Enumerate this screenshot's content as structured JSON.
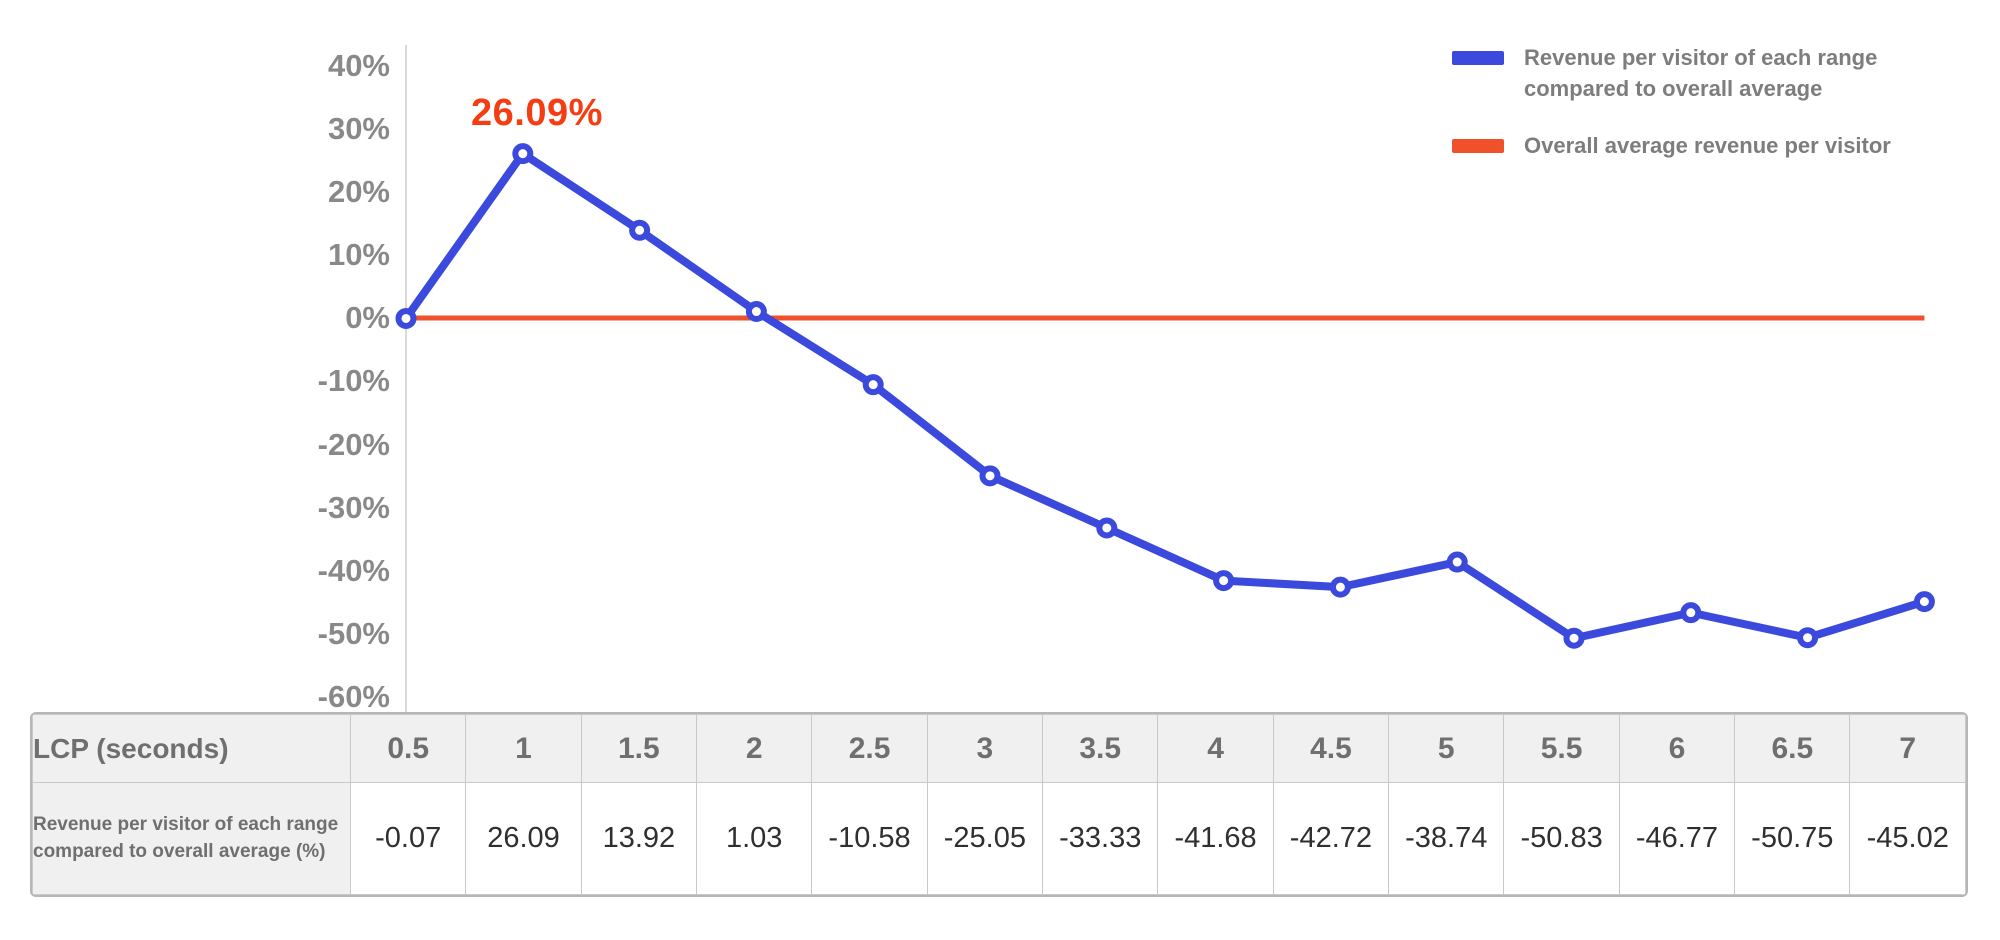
{
  "chart": {
    "y_ticks": [
      "40%",
      "30%",
      "20%",
      "10%",
      "0%",
      "-10%",
      "-20%",
      "-30%",
      "-40%",
      "-50%",
      "-60%"
    ]
  },
  "chart_data": {
    "type": "line",
    "x": [
      0.5,
      1,
      1.5,
      2,
      2.5,
      3,
      3.5,
      4,
      4.5,
      5,
      5.5,
      6,
      6.5,
      7
    ],
    "xlabel": "LCP (seconds)",
    "ylabel": "",
    "ylim": [
      -60,
      40
    ],
    "y_tick_step": 10,
    "grid": false,
    "legend_position": "top-right",
    "series": [
      {
        "name": "Revenue per visitor of each range compared to overall average",
        "color": "#3b49dc",
        "values": [
          -0.07,
          26.09,
          13.92,
          1.03,
          -10.58,
          -25.05,
          -33.33,
          -41.68,
          -42.72,
          -38.74,
          -50.83,
          -46.77,
          -50.75,
          -45.02
        ]
      },
      {
        "name": "Overall average revenue per visitor",
        "color": "#f0502a",
        "constant": 0
      }
    ],
    "annotation": {
      "text": "26.09%",
      "x": 1,
      "y": 26.09,
      "color": "#f53d14"
    }
  },
  "table": {
    "header_label": "LCP (seconds)",
    "row_label": "Revenue per visitor of each range compared to overall average (%)",
    "columns": [
      "0.5",
      "1",
      "1.5",
      "2",
      "2.5",
      "3",
      "3.5",
      "4",
      "4.5",
      "5",
      "5.5",
      "6",
      "6.5",
      "7"
    ],
    "values": [
      "-0.07",
      "26.09",
      "13.92",
      "1.03",
      "-10.58",
      "-25.05",
      "-33.33",
      "-41.68",
      "-42.72",
      "-38.74",
      "-50.83",
      "-46.77",
      "-50.75",
      "-45.02"
    ]
  }
}
